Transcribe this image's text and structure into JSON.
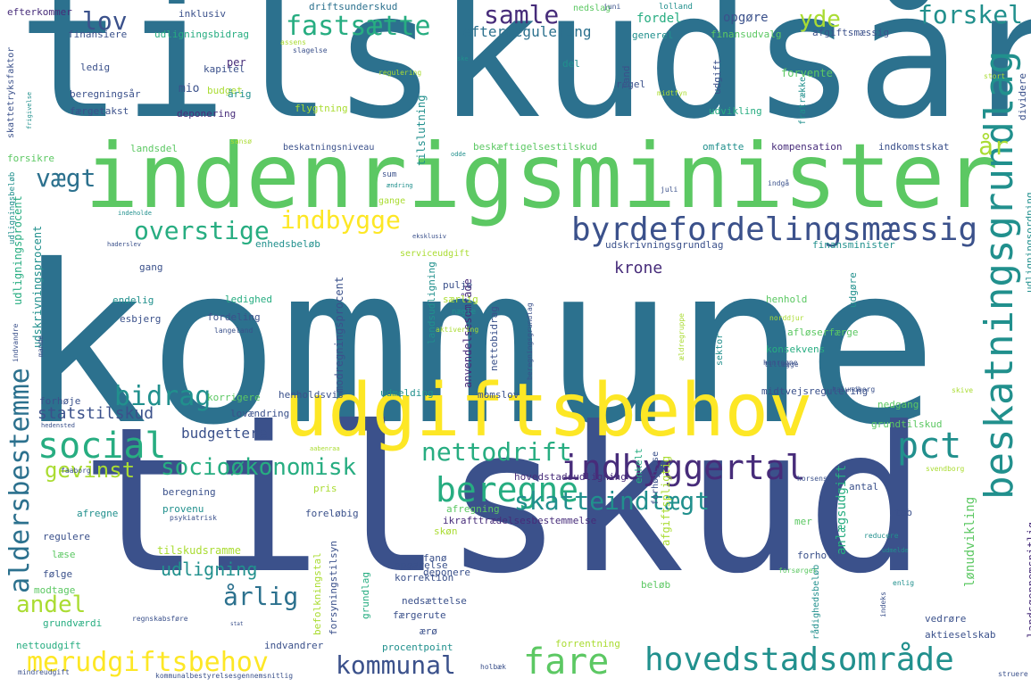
{
  "palette": {
    "purple": "#472c7a",
    "indigo": "#3b518b",
    "blue": "#2c718e",
    "teal": "#21908d",
    "green": "#27ad81",
    "lgreen": "#5cc863",
    "lime": "#aadc32",
    "yellow": "#fde725",
    "dark": "#440154"
  },
  "words": [
    {
      "text": "kommune",
      "c": "blue"
    },
    {
      "text": "tilskudsår",
      "c": "blue"
    },
    {
      "text": "tilskud",
      "c": "indigo"
    },
    {
      "text": "indenrigsminister",
      "c": "lgreen"
    },
    {
      "text": "udgiftsbehov",
      "c": "yellow"
    },
    {
      "text": "beskatningsgrundlag",
      "c": "teal"
    },
    {
      "text": "byrdefordelingsmæssig",
      "c": "indigo"
    },
    {
      "text": "indbyggertal",
      "c": "purple"
    },
    {
      "text": "hovedstadsområde",
      "c": "teal"
    },
    {
      "text": "aldersbestemme",
      "c": "blue"
    },
    {
      "text": "merudgiftsbehov",
      "c": "yellow"
    },
    {
      "text": "kommunal",
      "c": "indigo"
    },
    {
      "text": "fare",
      "c": "lgreen"
    },
    {
      "text": "social",
      "c": "green"
    },
    {
      "text": "bidrag",
      "c": "teal"
    },
    {
      "text": "pct",
      "c": "teal"
    },
    {
      "text": "beregne",
      "c": "green"
    },
    {
      "text": "nettodrift",
      "c": "green"
    },
    {
      "text": "socioøkonomisk",
      "c": "green"
    },
    {
      "text": "skatteindtægt",
      "c": "teal"
    },
    {
      "text": "indbygge",
      "c": "yellow"
    },
    {
      "text": "overstige",
      "c": "green"
    },
    {
      "text": "fastsætte",
      "c": "green"
    },
    {
      "text": "samle",
      "c": "purple"
    },
    {
      "text": "forskel",
      "c": "teal"
    },
    {
      "text": "yde",
      "c": "lime"
    },
    {
      "text": "lov",
      "c": "indigo"
    },
    {
      "text": "vægt",
      "c": "blue"
    },
    {
      "text": "år",
      "c": "lime"
    },
    {
      "text": "andel",
      "c": "lime"
    },
    {
      "text": "årlig",
      "c": "blue"
    },
    {
      "text": "gevinst",
      "c": "lime"
    },
    {
      "text": "udligning",
      "c": "teal"
    },
    {
      "text": "krone",
      "c": "purple"
    },
    {
      "text": "statstilskud",
      "c": "indigo"
    },
    {
      "text": "budgettere",
      "c": "indigo"
    },
    {
      "text": "efterregulering",
      "c": "blue"
    },
    {
      "text": "opgøre",
      "c": "indigo"
    },
    {
      "text": "fordel",
      "c": "green"
    },
    {
      "text": "tilskudsramme",
      "c": "lime"
    },
    {
      "text": "lønudvikling",
      "c": "lgreen"
    },
    {
      "text": "anlægsudgift",
      "c": "green"
    },
    {
      "text": "landsgennemsnitlig",
      "c": "purple"
    },
    {
      "text": "udligningsprocent",
      "c": "green"
    },
    {
      "text": "udskrivningsprocent",
      "c": "teal"
    },
    {
      "text": "modregningsprocent",
      "c": "indigo"
    },
    {
      "text": "anvendelsesområde",
      "c": "purple"
    },
    {
      "text": "tilslutning",
      "c": "teal"
    },
    {
      "text": "driftsunderskud",
      "c": "blue"
    },
    {
      "text": "efterkommer",
      "c": "purple"
    },
    {
      "text": "inklusiv",
      "c": "indigo"
    },
    {
      "text": "nedslag",
      "c": "lgreen"
    },
    {
      "text": "lolland",
      "c": "teal"
    },
    {
      "text": "juni",
      "c": "indigo"
    },
    {
      "text": "finansiere",
      "c": "indigo"
    },
    {
      "text": "udligningsbidrag",
      "c": "green"
    },
    {
      "text": "generel",
      "c": "teal"
    },
    {
      "text": "finansudvalg",
      "c": "lgreen"
    },
    {
      "text": "afgiftsmæssig",
      "c": "indigo"
    },
    {
      "text": "skattetryksfaktor",
      "c": "indigo"
    },
    {
      "text": "assens",
      "c": "lime"
    },
    {
      "text": "slagelse",
      "c": "indigo"
    },
    {
      "text": "ledig",
      "c": "indigo"
    },
    {
      "text": "kapitel",
      "c": "indigo"
    },
    {
      "text": "per",
      "c": "purple"
    },
    {
      "text": "ske",
      "c": "teal"
    },
    {
      "text": "del",
      "c": "teal"
    },
    {
      "text": "land",
      "c": "indigo"
    },
    {
      "text": "fratrække",
      "c": "teal"
    },
    {
      "text": "udgift",
      "c": "indigo"
    },
    {
      "text": "forvente",
      "c": "lgreen"
    },
    {
      "text": "dividere",
      "c": "indigo"
    },
    {
      "text": "beregningsår",
      "c": "indigo"
    },
    {
      "text": "mio",
      "c": "indigo"
    },
    {
      "text": "budget",
      "c": "lime"
    },
    {
      "text": "årig",
      "c": "teal"
    },
    {
      "text": "regel",
      "c": "indigo"
    },
    {
      "text": "midtfyn",
      "c": "lime"
    },
    {
      "text": "udvikling",
      "c": "green"
    },
    {
      "text": "færgetakst",
      "c": "indigo"
    },
    {
      "text": "deponering",
      "c": "purple"
    },
    {
      "text": "flygtning",
      "c": "lime"
    },
    {
      "text": "frigivelse",
      "c": "teal"
    },
    {
      "text": "landsdel",
      "c": "lgreen"
    },
    {
      "text": "sansø",
      "c": "lime"
    },
    {
      "text": "beskatningsniveau",
      "c": "indigo"
    },
    {
      "text": "beskæftigelsestilskud",
      "c": "lgreen"
    },
    {
      "text": "omfatte",
      "c": "teal"
    },
    {
      "text": "kompensation",
      "c": "purple"
    },
    {
      "text": "indkomstskat",
      "c": "indigo"
    },
    {
      "text": "forsikre",
      "c": "lgreen"
    },
    {
      "text": "odde",
      "c": "teal"
    },
    {
      "text": "sum",
      "c": "indigo"
    },
    {
      "text": "ændring",
      "c": "teal"
    },
    {
      "text": "gange",
      "c": "lime"
    },
    {
      "text": "juli",
      "c": "indigo"
    },
    {
      "text": "indgå",
      "c": "indigo"
    },
    {
      "text": "udligningsbeløb",
      "c": "teal"
    },
    {
      "text": "indeholde",
      "c": "teal"
    },
    {
      "text": "haderslev",
      "c": "indigo"
    },
    {
      "text": "enhedsbeløb",
      "c": "teal"
    },
    {
      "text": "eksklusiv",
      "c": "indigo"
    },
    {
      "text": "serviceudgift",
      "c": "lime"
    },
    {
      "text": "udskrivningsgrundlag",
      "c": "indigo"
    },
    {
      "text": "finansminister",
      "c": "teal"
    },
    {
      "text": "udligningsordning",
      "c": "teal"
    },
    {
      "text": "gang",
      "c": "indigo"
    },
    {
      "text": "pulje",
      "c": "indigo"
    },
    {
      "text": "endelig",
      "c": "teal"
    },
    {
      "text": "ledighed",
      "c": "green"
    },
    {
      "text": "særlig",
      "c": "lime"
    },
    {
      "text": "henhold",
      "c": "lgreen"
    },
    {
      "text": "udgøre",
      "c": "teal"
    },
    {
      "text": "esbjerg",
      "c": "indigo"
    },
    {
      "text": "fordeling",
      "c": "indigo"
    },
    {
      "text": "nægle",
      "c": "teal"
    },
    {
      "text": "norddjur",
      "c": "lime"
    },
    {
      "text": "langeland",
      "c": "indigo"
    },
    {
      "text": "aktivering",
      "c": "lime"
    },
    {
      "text": "afløserfærge",
      "c": "lgreen"
    },
    {
      "text": "konsekvens",
      "c": "green"
    },
    {
      "text": "tillægge",
      "c": "indigo"
    },
    {
      "text": "henregne",
      "c": "indigo"
    },
    {
      "text": "landsudligning",
      "c": "teal"
    },
    {
      "text": "nettobidrag",
      "c": "indigo"
    },
    {
      "text": "sektor",
      "c": "teal"
    },
    {
      "text": "beregningsgrundlag",
      "c": "indigo"
    },
    {
      "text": "ældregruppe",
      "c": "lime"
    },
    {
      "text": "indvandre",
      "c": "indigo"
    },
    {
      "text": "mande",
      "c": "indigo"
    },
    {
      "text": "forhøje",
      "c": "indigo"
    },
    {
      "text": "korrigere",
      "c": "lgreen"
    },
    {
      "text": "henholdsvis",
      "c": "indigo"
    },
    {
      "text": "udmelding",
      "c": "teal"
    },
    {
      "text": "momslov",
      "c": "indigo"
    },
    {
      "text": "midtvejsregulering",
      "c": "indigo"
    },
    {
      "text": "nedgang",
      "c": "lgreen"
    },
    {
      "text": "grundtilskud",
      "c": "lgreen"
    },
    {
      "text": "lovændring",
      "c": "indigo"
    },
    {
      "text": "skive",
      "c": "lime"
    },
    {
      "text": "kalundborg",
      "c": "indigo"
    },
    {
      "text": "hedensted",
      "c": "indigo"
    },
    {
      "text": "aabenraa",
      "c": "lime"
    },
    {
      "text": "hovedstadsudligning",
      "c": "purple"
    },
    {
      "text": "svendborg",
      "c": "lime"
    },
    {
      "text": "faaborg",
      "c": "indigo"
    },
    {
      "text": "beregning",
      "c": "indigo"
    },
    {
      "text": "antal",
      "c": "indigo"
    },
    {
      "text": "pris",
      "c": "lime"
    },
    {
      "text": "enkelt",
      "c": "green"
    },
    {
      "text": "forhøjelse",
      "c": "indigo"
    },
    {
      "text": "afregning",
      "c": "lgreen"
    },
    {
      "text": "horsens",
      "c": "indigo"
    },
    {
      "text": "tab",
      "c": "indigo"
    },
    {
      "text": "afregne",
      "c": "teal"
    },
    {
      "text": "provenu",
      "c": "teal"
    },
    {
      "text": "psykiatrisk",
      "c": "indigo"
    },
    {
      "text": "foreløbig",
      "c": "indigo"
    },
    {
      "text": "ikrafttrædelsesbestemmelse",
      "c": "purple"
    },
    {
      "text": "mer",
      "c": "lgreen"
    },
    {
      "text": "regulere",
      "c": "indigo"
    },
    {
      "text": "reducere",
      "c": "teal"
    },
    {
      "text": "afgiftspligtig",
      "c": "lime"
    },
    {
      "text": "læse",
      "c": "lgreen"
    },
    {
      "text": "fanø",
      "c": "indigo"
    },
    {
      "text": "skøn",
      "c": "lime"
    },
    {
      "text": "deponere",
      "c": "indigo"
    },
    {
      "text": "udmelde",
      "c": "teal"
    },
    {
      "text": "rådighedsbeløb",
      "c": "teal"
    },
    {
      "text": "forhold",
      "c": "indigo"
    },
    {
      "text": "forsørger",
      "c": "lgreen"
    },
    {
      "text": "følge",
      "c": "indigo"
    },
    {
      "text": "modtage",
      "c": "lgreen"
    },
    {
      "text": "befolkningstal",
      "c": "lime"
    },
    {
      "text": "forsyningstilsyn",
      "c": "indigo"
    },
    {
      "text": "grundlag",
      "c": "green"
    },
    {
      "text": "opgørelse",
      "c": "indigo"
    },
    {
      "text": "korrektion",
      "c": "indigo"
    },
    {
      "text": "beløb",
      "c": "lgreen"
    },
    {
      "text": "indeks",
      "c": "indigo"
    },
    {
      "text": "enlig",
      "c": "teal"
    },
    {
      "text": "nedsættelse",
      "c": "indigo"
    },
    {
      "text": "færgerute",
      "c": "indigo"
    },
    {
      "text": "grundværdi",
      "c": "green"
    },
    {
      "text": "regnskabsføre",
      "c": "indigo"
    },
    {
      "text": "ærø",
      "c": "indigo"
    },
    {
      "text": "vedrøre",
      "c": "indigo"
    },
    {
      "text": "aktieselskab",
      "c": "indigo"
    },
    {
      "text": "nettoudgift",
      "c": "green"
    },
    {
      "text": "indvandrer",
      "c": "indigo"
    },
    {
      "text": "procentpoint",
      "c": "teal"
    },
    {
      "text": "forrentning",
      "c": "lime"
    },
    {
      "text": "mindreudgift",
      "c": "indigo"
    },
    {
      "text": "kommunalbestyrelsesgennemsnitlig",
      "c": "indigo"
    },
    {
      "text": "holbæk",
      "c": "indigo"
    },
    {
      "text": "struere",
      "c": "indigo"
    },
    {
      "text": "stat",
      "c": "indigo"
    },
    {
      "text": "regulering",
      "c": "lime"
    },
    {
      "text": "stort",
      "c": "lime"
    }
  ]
}
